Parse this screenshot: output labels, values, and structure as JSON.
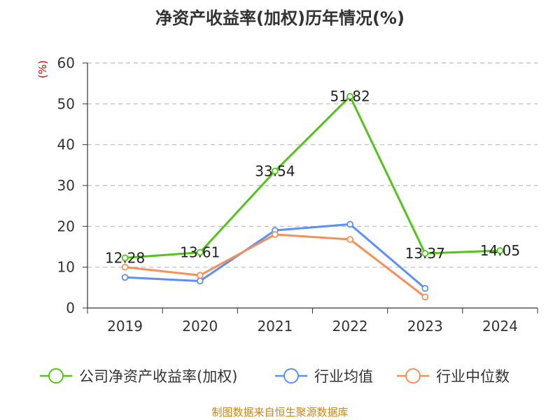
{
  "chart_data": {
    "type": "line",
    "title": "净资产收益率(加权)历年情况(%)",
    "ylabel": "(%)",
    "xlabel": "",
    "categories": [
      "2019",
      "2020",
      "2021",
      "2022",
      "2023",
      "2024"
    ],
    "ylim": [
      0,
      60
    ],
    "yticks": [
      "0",
      "10",
      "20",
      "30",
      "40",
      "50",
      "60"
    ],
    "grid": true,
    "legend_position": "bottom",
    "series": [
      {
        "name": "公司净资产收益率(加权)",
        "color": "#52c41a",
        "values": [
          12.28,
          13.61,
          33.54,
          51.82,
          13.37,
          14.05
        ],
        "labels": [
          "12.28",
          "13.61",
          "33.54",
          "51.82",
          "13.37",
          "14.05"
        ]
      },
      {
        "name": "行业均值",
        "color": "#5b8ff9",
        "values": [
          7.5,
          6.6,
          19.0,
          20.5,
          4.8,
          null
        ]
      },
      {
        "name": "行业中位数",
        "color": "#f6905a",
        "values": [
          10.0,
          8.0,
          18.0,
          16.8,
          2.7,
          null
        ]
      }
    ]
  },
  "source": "制图数据来自恒生聚源数据库"
}
